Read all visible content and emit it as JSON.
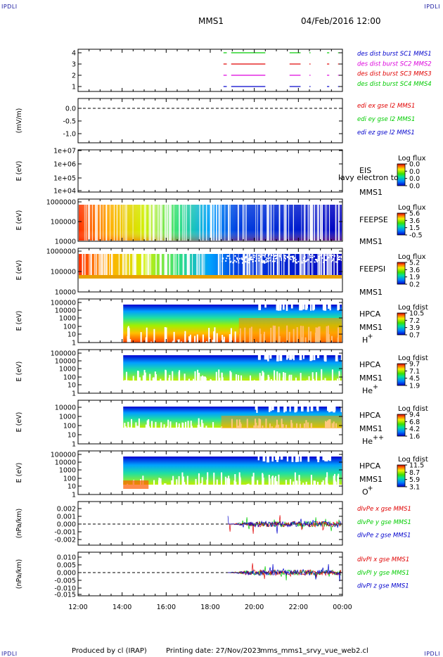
{
  "header": {
    "corner_label": "IPDLI",
    "mission": "MMS1",
    "date": "04/Feb/2016 12:00"
  },
  "footer": {
    "producer": "Produced by cl (IRAP)",
    "printing": "Printing date: 27/Nov/2023",
    "filename": "mms_mms1_srvy_vue_web2.cl"
  },
  "time_axis": {
    "ticks": [
      "12:00",
      "14:00",
      "16:00",
      "18:00",
      "20:00",
      "22:00",
      "00:00"
    ]
  },
  "colors": {
    "red": "#e00000",
    "green": "#00cc00",
    "blue": "#0000cc",
    "magenta": "#dd00dd"
  },
  "panels": [
    {
      "id": "burst",
      "ylabel": "",
      "yticks": [
        "4",
        "3",
        "2",
        "1"
      ],
      "legend": [
        {
          "text": "des dist burst SC1 MMS1",
          "color": "#0000cc"
        },
        {
          "text": "des dist burst SC2 MMS2",
          "color": "#dd00dd"
        },
        {
          "text": "des dist burst SC3 MMS3",
          "color": "#e00000"
        },
        {
          "text": "des dist burst SC4 MMS4",
          "color": "#00cc00"
        }
      ]
    },
    {
      "id": "efield",
      "ylabel": "(mV/m)",
      "yticks": [
        "0.0",
        "-0.5",
        "-1.0"
      ],
      "legend": [
        {
          "text": "edi ex gse l2 MMS1",
          "color": "#e00000"
        },
        {
          "text": "edi ey gse l2 MMS1",
          "color": "#00cc00"
        },
        {
          "text": "edi ez gse l2 MMS1",
          "color": "#0000cc"
        }
      ]
    },
    {
      "id": "eis",
      "ylabel": "E (eV)",
      "yticks": [
        "1e+07",
        "1e+06",
        "1e+05",
        "1e+04"
      ],
      "labels": [
        "EIS",
        "MMS1"
      ],
      "overflow_text": "lavy electron to",
      "colorbar": {
        "title": "Log flux",
        "ticks": [
          "0.0",
          "0.0",
          "0.0",
          "0.0"
        ]
      }
    },
    {
      "id": "feepse",
      "ylabel": "E (eV)",
      "yticks": [
        "1000000",
        "100000",
        "10000"
      ],
      "labels": [
        "FEEPSE",
        "MMS1"
      ],
      "colorbar": {
        "title": "Log flux",
        "ticks": [
          "5.6",
          "3.6",
          "1.5",
          "-0.5"
        ]
      }
    },
    {
      "id": "feepsi",
      "ylabel": "E (eV)",
      "yticks": [
        "1000000",
        "100000",
        "10000"
      ],
      "labels": [
        "FEEPSI",
        "MMS1"
      ],
      "colorbar": {
        "title": "Log flux",
        "ticks": [
          "5.2",
          "3.6",
          "1.9",
          "0.2"
        ]
      }
    },
    {
      "id": "hpca_h",
      "ylabel": "E (eV)",
      "yticks": [
        "100000",
        "10000",
        "1000",
        "100",
        "10",
        "1"
      ],
      "labels": [
        "HPCA",
        "MMS1"
      ],
      "species": "H",
      "species_sup": "+",
      "colorbar": {
        "title": "Log fdist",
        "ticks": [
          "10.5",
          "7.2",
          "3.9",
          "0.7"
        ]
      }
    },
    {
      "id": "hpca_he",
      "ylabel": "E (eV)",
      "yticks": [
        "100000",
        "10000",
        "1000",
        "100",
        "10",
        "1"
      ],
      "labels": [
        "HPCA",
        "MMS1"
      ],
      "species": "He",
      "species_sup": "+",
      "colorbar": {
        "title": "Log fdist",
        "ticks": [
          "9.7",
          "7.1",
          "4.5",
          "1.9"
        ]
      }
    },
    {
      "id": "hpca_hepp",
      "ylabel": "E (eV)",
      "yticks": [
        "10000",
        "1000",
        "100",
        "10",
        "1"
      ],
      "labels": [
        "HPCA",
        "MMS1"
      ],
      "species": "He",
      "species_sup": "++",
      "colorbar": {
        "title": "Log fdist",
        "ticks": [
          "9.4",
          "6.8",
          "4.2",
          "1.6"
        ]
      }
    },
    {
      "id": "hpca_o",
      "ylabel": "E (eV)",
      "yticks": [
        "100000",
        "10000",
        "1000",
        "100",
        "10",
        "1"
      ],
      "labels": [
        "HPCA",
        "MMS1"
      ],
      "species": "O",
      "species_sup": "+",
      "colorbar": {
        "title": "Log fdist",
        "ticks": [
          "11.5",
          "8.7",
          "5.9",
          "3.1"
        ]
      }
    },
    {
      "id": "divpe",
      "ylabel": "(nPa/km)",
      "yticks": [
        "0.002",
        "0.001",
        "0.000",
        "-0.001",
        "-0.002"
      ],
      "legend": [
        {
          "text": "dIvPe x gse MMS1",
          "color": "#e00000"
        },
        {
          "text": "dIvPe y gse MMS1",
          "color": "#00cc00"
        },
        {
          "text": "dIvPe z gse MMS1",
          "color": "#0000cc"
        }
      ]
    },
    {
      "id": "divpi",
      "ylabel": "(nPa/km)",
      "yticks": [
        "0.010",
        "0.005",
        "0.000",
        "-0.005",
        "-0.010",
        "-0.015"
      ],
      "legend": [
        {
          "text": "dIvPI x gse MMS1",
          "color": "#e00000"
        },
        {
          "text": "dIvPI y gse MMS1",
          "color": "#00cc00"
        },
        {
          "text": "dIvPI z gse MMS1",
          "color": "#0000cc"
        }
      ]
    }
  ]
}
